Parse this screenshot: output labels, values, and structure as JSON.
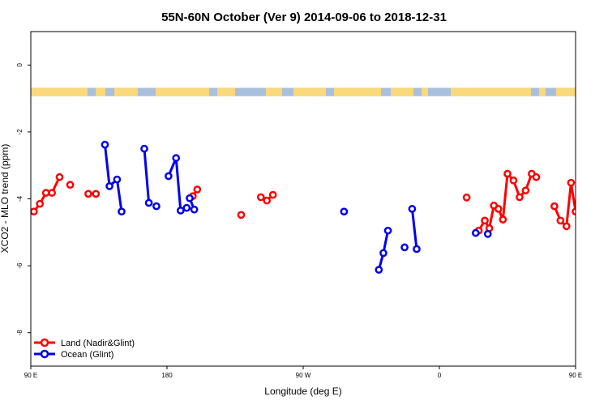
{
  "chart_data": {
    "type": "line",
    "title": "55N-60N October (Ver 9)   2014-09-06 to 2018-12-31",
    "xlabel": "Longitude (deg E)",
    "ylabel": "XCO2 - MLO trend (ppm)",
    "xlim": [
      90,
      450
    ],
    "ylim": [
      -9,
      1
    ],
    "x_ticks": [
      {
        "value": 90,
        "label": "90 E"
      },
      {
        "value": 180,
        "label": "180"
      },
      {
        "value": 270,
        "label": "90 W"
      },
      {
        "value": 360,
        "label": "0"
      },
      {
        "value": 450,
        "label": "90 E"
      },
      {
        "value": 540,
        "label": "180"
      }
    ],
    "y_ticks": [
      {
        "value": 0,
        "label": "0"
      },
      {
        "value": -2,
        "label": "-2"
      },
      {
        "value": -4,
        "label": "-4"
      },
      {
        "value": -6,
        "label": "-6"
      },
      {
        "value": -8,
        "label": "-8"
      }
    ],
    "land_band": {
      "y_top": -0.68,
      "y_bottom": -0.93,
      "ocean_color": "#a9bfdc",
      "land_color": "#fad97a"
    },
    "legend": {
      "position": "bottom-left"
    },
    "series": [
      {
        "name": "Land (Nadir&Glint)",
        "color": "#ff0000",
        "segments": [
          [
            [
              92,
              -4.38
            ],
            [
              96,
              -4.15
            ],
            [
              100,
              -3.82
            ],
            [
              104,
              -3.82
            ],
            [
              109,
              -3.35
            ]
          ],
          [
            [
              116,
              -3.58
            ]
          ],
          [
            [
              128,
              -3.85
            ],
            [
              133,
              -3.85
            ]
          ],
          [
            [
              197,
              -3.92
            ],
            [
              200,
              -3.72
            ]
          ],
          [
            [
              229,
              -4.48
            ]
          ],
          [
            [
              242,
              -3.95
            ],
            [
              246,
              -4.05
            ],
            [
              250,
              -3.88
            ]
          ],
          [
            [
              378,
              -3.96
            ]
          ],
          [
            [
              386,
              -4.95
            ],
            [
              390,
              -4.65
            ],
            [
              393,
              -4.88
            ],
            [
              396,
              -4.2
            ],
            [
              399,
              -4.3
            ],
            [
              402,
              -4.62
            ],
            [
              405,
              -3.25
            ],
            [
              409,
              -3.45
            ],
            [
              413,
              -3.95
            ],
            [
              417,
              -3.75
            ],
            [
              421,
              -3.25
            ],
            [
              424,
              -3.35
            ]
          ],
          [
            [
              436,
              -4.22
            ],
            [
              440,
              -4.65
            ],
            [
              444,
              -4.82
            ],
            [
              447,
              -3.52
            ],
            [
              450,
              -4.38
            ]
          ]
        ]
      },
      {
        "name": "Ocean (Glint)",
        "color": "#0000ee",
        "segments": [
          [
            [
              139,
              -2.38
            ],
            [
              142,
              -3.62
            ],
            [
              147,
              -3.42
            ],
            [
              150,
              -4.38
            ]
          ],
          [
            [
              165,
              -2.5
            ],
            [
              168,
              -4.12
            ]
          ],
          [
            [
              173,
              -4.22
            ]
          ],
          [
            [
              181,
              -3.32
            ],
            [
              186,
              -2.78
            ],
            [
              189,
              -4.35
            ],
            [
              193,
              -4.27
            ]
          ],
          [
            [
              195,
              -3.98
            ],
            [
              198,
              -4.32
            ]
          ],
          [
            [
              297,
              -4.38
            ]
          ],
          [
            [
              320,
              -6.12
            ],
            [
              323,
              -5.62
            ],
            [
              326,
              -4.95
            ]
          ],
          [
            [
              337,
              -5.45
            ]
          ],
          [
            [
              342,
              -4.3
            ],
            [
              345,
              -5.5
            ]
          ],
          [
            [
              384,
              -5.02
            ]
          ],
          [
            [
              392,
              -5.05
            ]
          ]
        ]
      }
    ]
  }
}
